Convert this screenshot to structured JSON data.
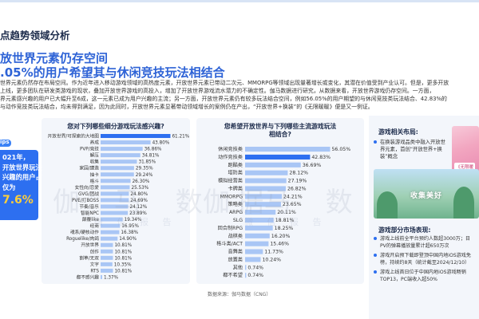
{
  "header": {
    "section_tag": "点趋势领域分析",
    "headline_line1": "放世界元素仍存空间",
    ".headline_line2": "",
    "headline_line2_text": ".05%的用户希望其与休闲竞技玩法相结合"
  },
  "paragraphs": [
    "世界元素仍然存在布局空间。作为近年进入移动游戏领域的高热度元素，开放世界元素已带动二次元、MMORPG等领域出现量著增长或变化，其潜在价值受到产业认可。但是，更多开放",
    "上线，更多团队在研发类游戏的现状，叠加开放世界游戏的高投入，增加了开放世界游戏流水潜力的不确定性。伽马数据进行研究，从数据来看，开放世界游戏仍存空间。一方面，",
    "界元素感兴趣的用户已大幅升至6成，这一元素已成为用户兴趣的主流；另一方面，开放世界元素仍有较多玩法结合空间，例如56.05%的用户期望的与休闲竞技类玩法结合、42.83%的",
    "与动作竞技类玩法结合，均未得到满足，因为此同时，开放世界元素显著带动领域增长的案例仍在产出，“开放世界+换装”的《无限暖暖》便是又一例证。"
  ],
  "callout": {
    "tag": "ips",
    "lines": [
      "021年，",
      "开放世界玩法",
      "兴趣的用户占",
      "仅为"
    ],
    "value": "7.6%"
  },
  "watermark": {
    "main": "伽 马 数 据",
    "sub": "微 信 报 告"
  },
  "chart_data": [
    {
      "type": "bar",
      "title": "您对下列哪些细分游戏玩法感兴趣?",
      "categories": [
        "开放世界/可探索的大地图",
        "养成",
        "PVP/竞技",
        "解压",
        "收集",
        "家园/建造",
        "抽卡",
        "格斗",
        "女性向/恋爱",
        "GVG/团战",
        "PVE/打BOSS",
        "节奏/音乐",
        "智能NPC",
        "颠覆like",
        "经商",
        "魂系/硬核动作",
        "Roguelike/肉鸽",
        "开放世界",
        "创作",
        "割草/无双",
        "文字",
        "RTS",
        "都不感兴趣"
      ],
      "values": [
        61.21,
        43.8,
        36.86,
        34.81,
        31.85,
        29.35,
        29.24,
        26.3,
        25.53,
        24.8,
        24.69,
        24.12,
        23.89,
        19.34,
        16.95,
        16.38,
        14.9,
        10.81,
        10.81,
        10.81,
        10.35,
        10.81,
        1.37
      ],
      "value_labels": [
        "61.21%",
        "43.80%",
        "36.86%",
        "34.81%",
        "31.85%",
        "29.35%",
        "29.24%",
        "26.30%",
        "25.53%",
        "24.80%",
        "24.69%",
        "24.12%",
        "23.89%",
        "19.34%",
        "16.95%",
        "16.38%",
        "14.90%",
        "10.81%",
        "10.81%",
        "10.81%",
        "10.35%",
        "10.81%",
        "1.37%"
      ],
      "highlight_index": 0,
      "xlim": [
        0,
        70
      ],
      "colors": {
        "highlight": "#2d6ff0",
        "base": "#a9c6f5"
      }
    },
    {
      "type": "bar",
      "title": "您希望开放世界与下列哪些主流游戏玩法相结合?",
      "categories": [
        "休闲竞技类",
        "动作竞技类",
        "跑酷类",
        "塔防类",
        "模拟经营类",
        "卡牌类",
        "MMORPG",
        "策略类",
        "ARPG",
        "SLG",
        "回合制RPG",
        "战棋类",
        "格斗类/ACT",
        "音舞类",
        "放置类",
        "其他",
        "都不希望"
      ],
      "values": [
        56.05,
        42.83,
        36.69,
        28.12,
        27.19,
        26.82,
        24.21,
        23.65,
        20.11,
        18.81,
        18.25,
        16.2,
        15.46,
        11.73,
        10.24,
        0.74,
        0.74
      ],
      "value_labels": [
        "56.05%",
        "42.83%",
        "36.69%",
        "28.12%",
        "27.19%",
        "26.82%",
        "24.21%",
        "23.65%",
        "20.11%",
        "18.81%",
        "18.25%",
        "16.20%",
        "15.46%",
        "11.73%",
        "10.24%",
        "0.74%",
        "0.74%"
      ],
      "highlight_index": 1,
      "xlim": [
        0,
        60
      ],
      "colors": {
        "highlight": "#2d6ff0",
        "base": "#a9c6f5"
      }
    }
  ],
  "side": {
    "title": "游戏相关布局:",
    "bullet": "在换装游戏品类中融入开放世界元素，首创“开放世界+换装”概念",
    "scene_caption": "收集美好",
    "art_logo": "《无限暖",
    "market_title": "游戏部分市场表现:",
    "market_items": [
      "游戏上线前全平台预约人数超3000万；日",
      "PV的弹幕播放量累计超650万次",
      "游戏开启预下载即登顶中国内地iOS游戏免",
      "榜，持续约8天（统计截至2024/12/10）",
      "游戏上线首日位于中国内地iOS游戏畅销",
      "TOP13，PC端收入超50%"
    ]
  },
  "source": "数据来源：伽马数据（CNG）"
}
